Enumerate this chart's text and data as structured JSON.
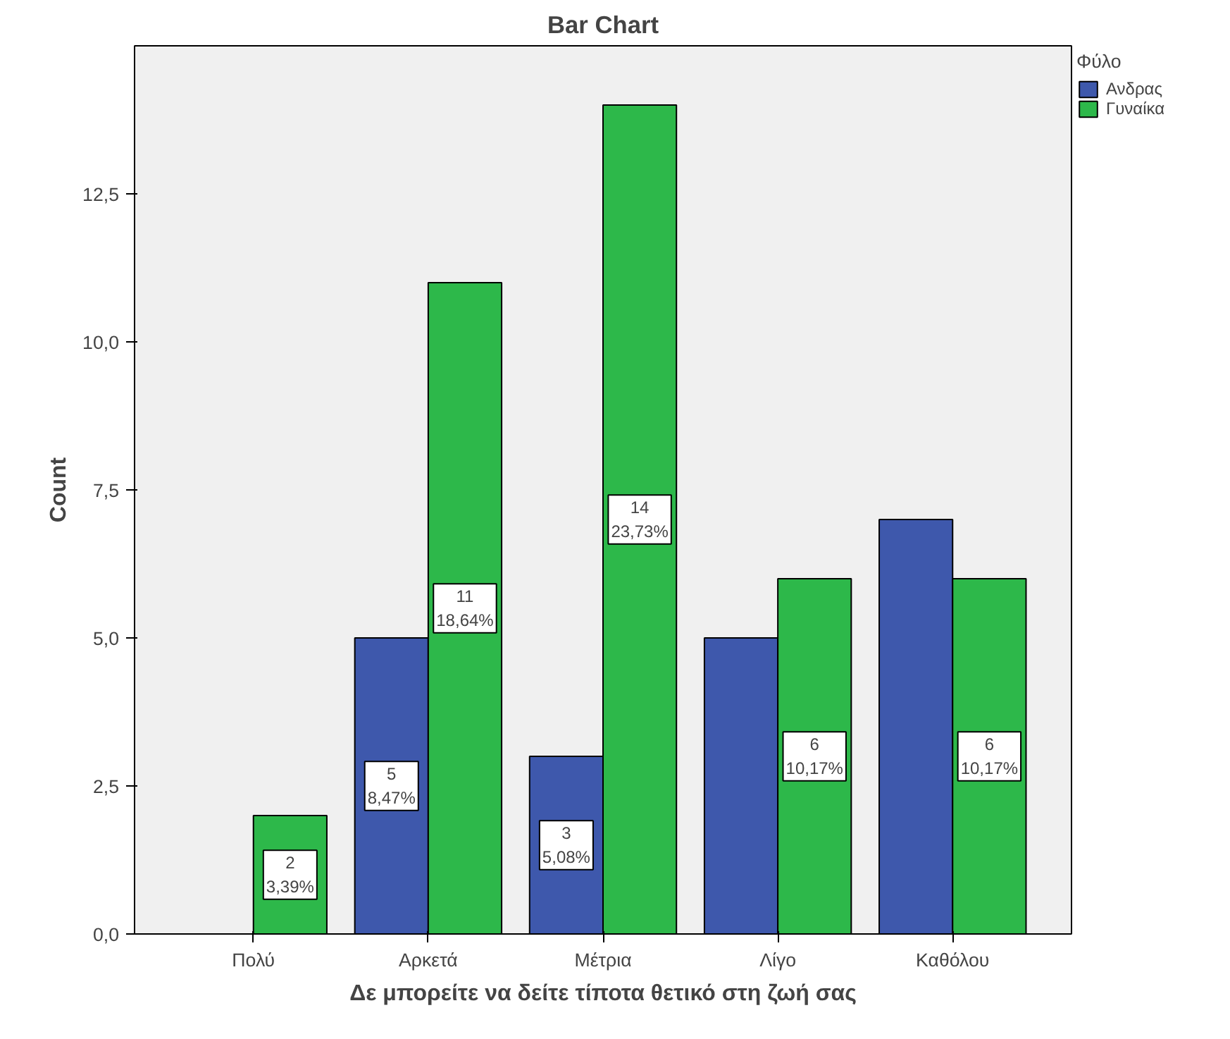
{
  "chart_data": {
    "type": "bar",
    "title": "Bar Chart",
    "xlabel": "Δε μπορείτε να δείτε τίποτα θετικό στη ζωή σας",
    "ylabel": "Count",
    "legend_title": "Φύλο",
    "categories": [
      "Πολύ",
      "Αρκετά",
      "Μέτρια",
      "Λίγο",
      "Καθόλου"
    ],
    "series": [
      {
        "name": "Ανδρας",
        "color": "#3e58ac",
        "values": [
          null,
          5,
          3,
          5,
          7
        ],
        "value_labels": [
          null,
          "5\n8,47%",
          "3\n5,08%",
          null,
          null
        ]
      },
      {
        "name": "Γυναίκα",
        "color": "#2db84a",
        "values": [
          2,
          11,
          14,
          6,
          6
        ],
        "value_labels": [
          "2\n3,39%",
          "11\n18,64%",
          "14\n23,73%",
          "6\n10,17%",
          "6\n10,17%"
        ]
      }
    ],
    "ylim": [
      0,
      15
    ],
    "yticks": [
      {
        "value": 0,
        "label": "0,0"
      },
      {
        "value": 2.5,
        "label": "2,5"
      },
      {
        "value": 5,
        "label": "5,0"
      },
      {
        "value": 7.5,
        "label": "7,5"
      },
      {
        "value": 10,
        "label": "10,0"
      },
      {
        "value": 12.5,
        "label": "12,5"
      }
    ],
    "grid": false,
    "legend": "top right"
  }
}
